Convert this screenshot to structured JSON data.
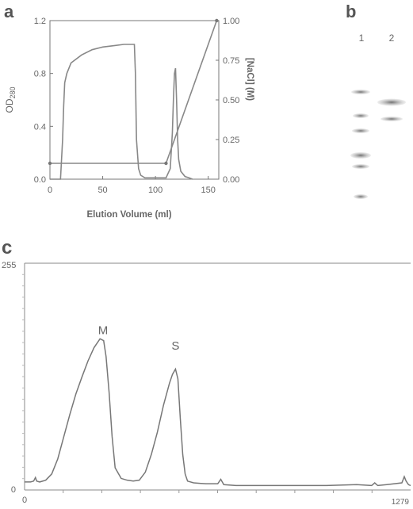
{
  "panels": {
    "a": {
      "letter": "a"
    },
    "b": {
      "letter": "b",
      "lane_labels": [
        "1",
        "2"
      ]
    },
    "c": {
      "letter": "c"
    }
  },
  "chart_data": [
    {
      "panel": "a",
      "type": "line",
      "xlabel": "Elution Volume (ml)",
      "ylabel_left": "OD280",
      "ylabel_right": "[NaCl] (M)",
      "xlim": [
        0,
        160
      ],
      "ylim": [
        0,
        1.2
      ],
      "ylim_right": [
        0,
        1.0
      ],
      "x_ticks": [
        "0",
        "50",
        "100",
        "150"
      ],
      "y_ticks": [
        "0.0",
        "0.4",
        "0.8",
        "1.2"
      ],
      "y_ticks_right": [
        "0.00",
        "0.25",
        "0.50",
        "0.75",
        "1.00"
      ],
      "series": [
        {
          "axis": "left",
          "x": [
            0,
            10,
            12,
            13,
            14,
            16,
            20,
            30,
            40,
            50,
            60,
            70,
            80,
            81,
            82,
            84,
            86,
            90,
            100,
            110,
            114,
            116,
            117,
            118,
            119,
            120,
            121,
            122,
            124,
            128,
            132,
            135
          ],
          "y": [
            0,
            0,
            0.3,
            0.55,
            0.73,
            0.8,
            0.88,
            0.94,
            0.98,
            1.0,
            1.01,
            1.02,
            1.02,
            0.8,
            0.3,
            0.08,
            0.03,
            0.01,
            0.01,
            0.01,
            0.08,
            0.35,
            0.6,
            0.8,
            0.84,
            0.6,
            0.3,
            0.15,
            0.06,
            0.02,
            0.01,
            0
          ]
        },
        {
          "axis": "right",
          "markers": true,
          "x": [
            0,
            110,
            158
          ],
          "y": [
            0.1,
            0.1,
            1.0
          ]
        }
      ]
    },
    {
      "panel": "c",
      "type": "line",
      "xlim": [
        0,
        1279
      ],
      "ylim": [
        0,
        255
      ],
      "x_ticks": [
        "0",
        "1279"
      ],
      "y_ticks": [
        "0",
        "255"
      ],
      "annotations": [
        {
          "text": "M",
          "x": 260,
          "y": 175
        },
        {
          "text": "S",
          "x": 500,
          "y": 158
        }
      ],
      "series": [
        {
          "x": [
            0,
            20,
            30,
            36,
            40,
            50,
            70,
            90,
            110,
            130,
            150,
            170,
            190,
            210,
            230,
            250,
            262,
            270,
            280,
            290,
            300,
            320,
            340,
            360,
            380,
            400,
            420,
            440,
            460,
            480,
            490,
            500,
            508,
            516,
            524,
            532,
            540,
            560,
            600,
            640,
            650,
            660,
            700,
            800,
            900,
            1000,
            1100,
            1150,
            1160,
            1170,
            1200,
            1250,
            1258,
            1264,
            1272,
            1279
          ],
          "y": [
            9,
            9,
            10,
            14,
            10,
            9,
            11,
            18,
            35,
            60,
            85,
            108,
            127,
            145,
            160,
            170,
            168,
            150,
            110,
            60,
            25,
            13,
            11,
            10,
            11,
            20,
            40,
            65,
            95,
            120,
            130,
            136,
            125,
            80,
            40,
            18,
            10,
            8,
            7,
            7,
            12,
            6,
            5,
            5,
            5,
            5,
            6,
            5,
            8,
            5,
            6,
            8,
            15,
            10,
            6,
            5
          ]
        }
      ]
    }
  ],
  "gel": {
    "lane1_band_y": [
      116,
      146,
      165,
      196,
      210,
      248
    ],
    "lane2_band_y": [
      129,
      150
    ]
  }
}
